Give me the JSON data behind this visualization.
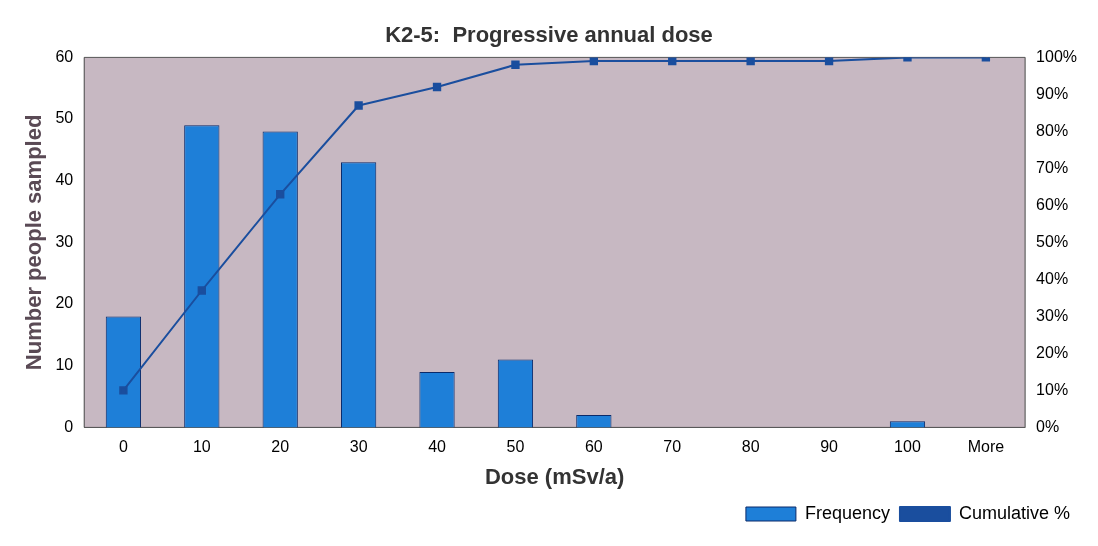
{
  "chart_data": {
    "type": "bar",
    "title": "K2-5:  Progressive annual dose",
    "xlabel": "Dose (mSv/a)",
    "ylabel": "Number people sampled",
    "categories": [
      "0",
      "10",
      "20",
      "30",
      "40",
      "50",
      "60",
      "70",
      "80",
      "90",
      "100",
      "More"
    ],
    "series": [
      {
        "name": "Frequency",
        "color": "#1e7fd8",
        "values": [
          18,
          49,
          48,
          43,
          9,
          11,
          2,
          0,
          0,
          0,
          1,
          0
        ]
      },
      {
        "name": "Cumulative %",
        "type": "line",
        "axis": "y2",
        "color": "#1a4e9e",
        "marker": "square",
        "values": [
          10,
          37,
          63,
          87,
          92,
          98,
          99,
          99,
          99,
          99,
          100,
          100
        ]
      }
    ],
    "ylim": [
      0,
      60
    ],
    "yticks": [
      0,
      10,
      20,
      30,
      40,
      50,
      60
    ],
    "y2lim": [
      0,
      100
    ],
    "y2ticks": [
      {
        "value": 0,
        "label": "0%"
      },
      {
        "value": 10,
        "label": "10%"
      },
      {
        "value": 20,
        "label": "20%"
      },
      {
        "value": 30,
        "label": "30%"
      },
      {
        "value": 40,
        "label": "40%"
      },
      {
        "value": 50,
        "label": "50%"
      },
      {
        "value": 60,
        "label": "60%"
      },
      {
        "value": 70,
        "label": "70%"
      },
      {
        "value": 80,
        "label": "80%"
      },
      {
        "value": 90,
        "label": "90%"
      },
      {
        "value": 100,
        "label": "100%"
      }
    ],
    "legend": "bottom right",
    "grid": false
  }
}
